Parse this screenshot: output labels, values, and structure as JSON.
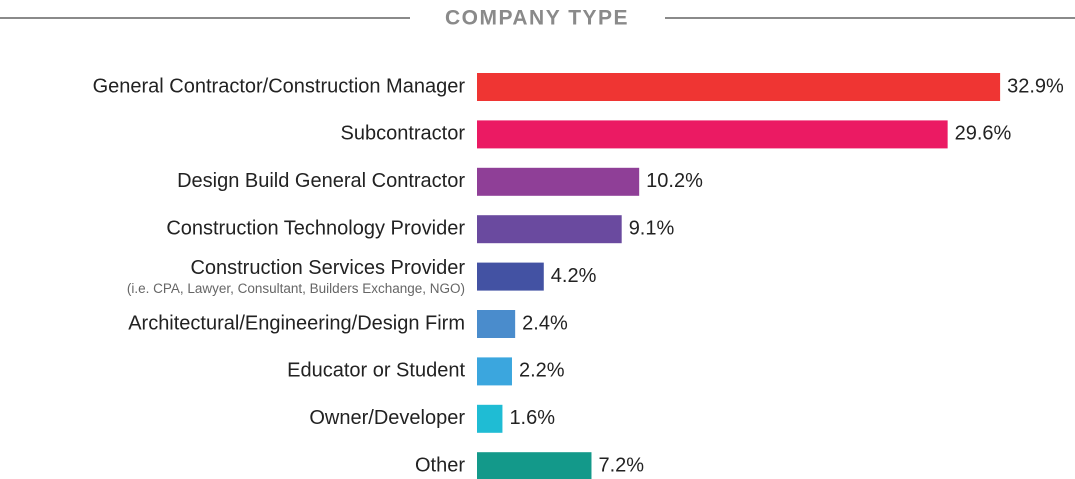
{
  "chart_data": {
    "type": "bar",
    "orientation": "horizontal",
    "title": "COMPANY TYPE",
    "categories": [
      "General Contractor/Construction Manager",
      "Subcontractor",
      "Design Build General Contractor",
      "Construction Technology Provider",
      "Construction Services Provider",
      "Architectural/Engineering/Design Firm",
      "Educator or Student",
      "Owner/Developer",
      "Other"
    ],
    "values": [
      32.9,
      29.6,
      10.2,
      9.1,
      4.2,
      2.4,
      2.2,
      1.6,
      7.2
    ],
    "value_labels": [
      "32.9%",
      "29.6%",
      "10.2%",
      "9.1%",
      "4.2%",
      "2.4%",
      "2.2%",
      "1.6%",
      "7.2%"
    ],
    "colors": [
      "#ef3533",
      "#eb1a63",
      "#8f3f97",
      "#6a4a9f",
      "#4352a3",
      "#4a8ccc",
      "#3ba6de",
      "#1fbcd4",
      "#13998a"
    ],
    "annotations": [
      {
        "category": "Construction Services Provider",
        "text": "(i.e. CPA, Lawyer, Consultant, Builders Exchange, NGO)"
      }
    ]
  }
}
